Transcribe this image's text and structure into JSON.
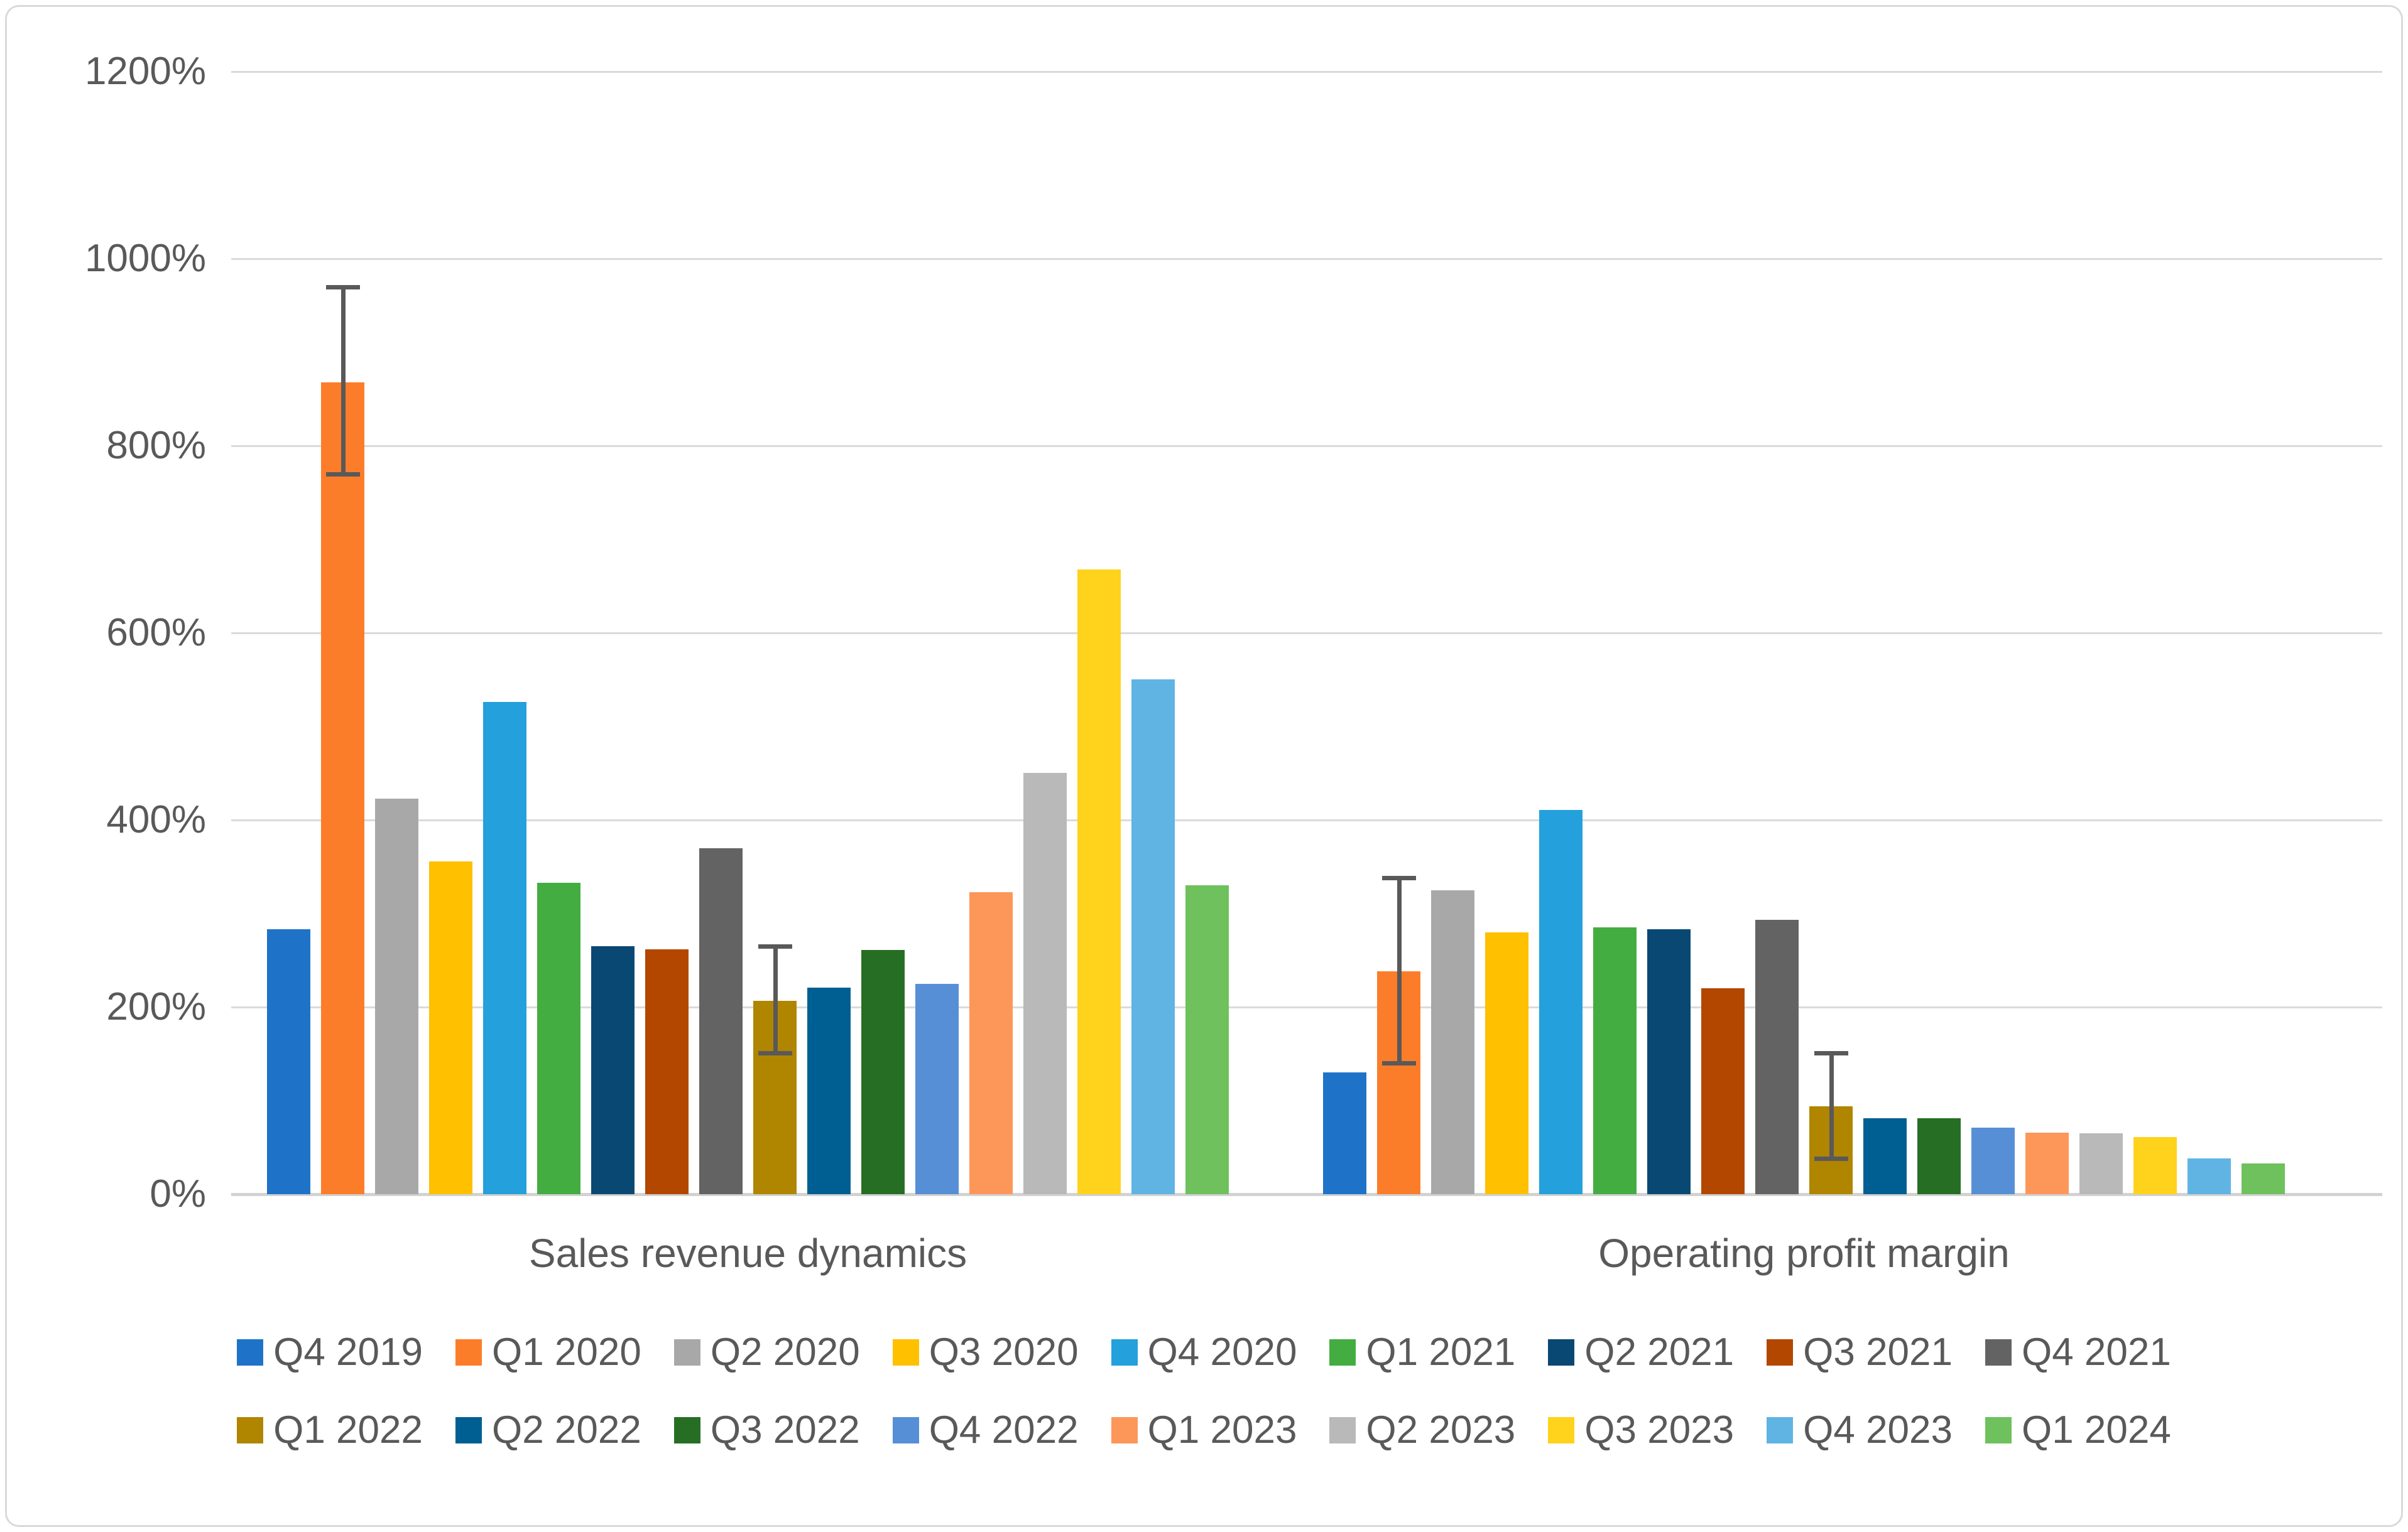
{
  "chart_data": {
    "type": "bar",
    "title": "",
    "groups": [
      "Sales revenue dynamics",
      "Operating profit margin"
    ],
    "unit": "%",
    "ylim": [
      0,
      1200
    ],
    "ytick_step": 200,
    "ytick_values": [
      0,
      200,
      400,
      600,
      800,
      1000,
      1200
    ],
    "ytick_labels": [
      "0%",
      "200%",
      "400%",
      "600%",
      "800%",
      "1000%",
      "1200%"
    ],
    "grid": true,
    "legend_position": "bottom",
    "legend_rows": 2,
    "series": [
      {
        "name": "Q4 2019",
        "color": "#1E73C8",
        "values": [
          283,
          130
        ]
      },
      {
        "name": "Q1 2020",
        "color": "#FC7D29",
        "values": [
          868,
          238
        ],
        "errors": [
          {
            "hi": 970,
            "lo": 770
          },
          {
            "hi": 338,
            "lo": 140
          }
        ]
      },
      {
        "name": "Q2 2020",
        "color": "#A8A8A8",
        "values": [
          423,
          325
        ]
      },
      {
        "name": "Q3 2020",
        "color": "#FFC000",
        "values": [
          356,
          280
        ]
      },
      {
        "name": "Q4 2020",
        "color": "#24A0DC",
        "values": [
          526,
          411
        ]
      },
      {
        "name": "Q1 2021",
        "color": "#43AD41",
        "values": [
          333,
          285
        ]
      },
      {
        "name": "Q2 2021",
        "color": "#0A4874",
        "values": [
          265,
          283
        ]
      },
      {
        "name": "Q3 2021",
        "color": "#B34700",
        "values": [
          262,
          220
        ]
      },
      {
        "name": "Q4 2021",
        "color": "#636363",
        "values": [
          370,
          293
        ]
      },
      {
        "name": "Q1 2022",
        "color": "#B08500",
        "values": [
          207,
          94
        ],
        "errors": [
          {
            "hi": 265,
            "lo": 151
          },
          {
            "hi": 151,
            "lo": 38
          }
        ]
      },
      {
        "name": "Q2 2022",
        "color": "#005F92",
        "values": [
          221,
          81
        ]
      },
      {
        "name": "Q3 2022",
        "color": "#266E23",
        "values": [
          261,
          81
        ]
      },
      {
        "name": "Q4 2022",
        "color": "#568FD6",
        "values": [
          225,
          71
        ]
      },
      {
        "name": "Q1 2023",
        "color": "#FC9759",
        "values": [
          323,
          66
        ]
      },
      {
        "name": "Q2 2023",
        "color": "#B9B9B9",
        "values": [
          450,
          65
        ]
      },
      {
        "name": "Q3 2023",
        "color": "#FFD21C",
        "values": [
          668,
          61
        ]
      },
      {
        "name": "Q4 2023",
        "color": "#5FB4E4",
        "values": [
          550,
          38
        ]
      },
      {
        "name": "Q1 2024",
        "color": "#6EC15C",
        "values": [
          330,
          33
        ]
      }
    ]
  },
  "styles": {
    "background": "#FFFFFF",
    "text_color": "#595959",
    "grid_color": "#DADADA",
    "axis_color": "#D2D2D2",
    "border_color": "#D9D9D9",
    "error_bar_color": "#595959"
  }
}
